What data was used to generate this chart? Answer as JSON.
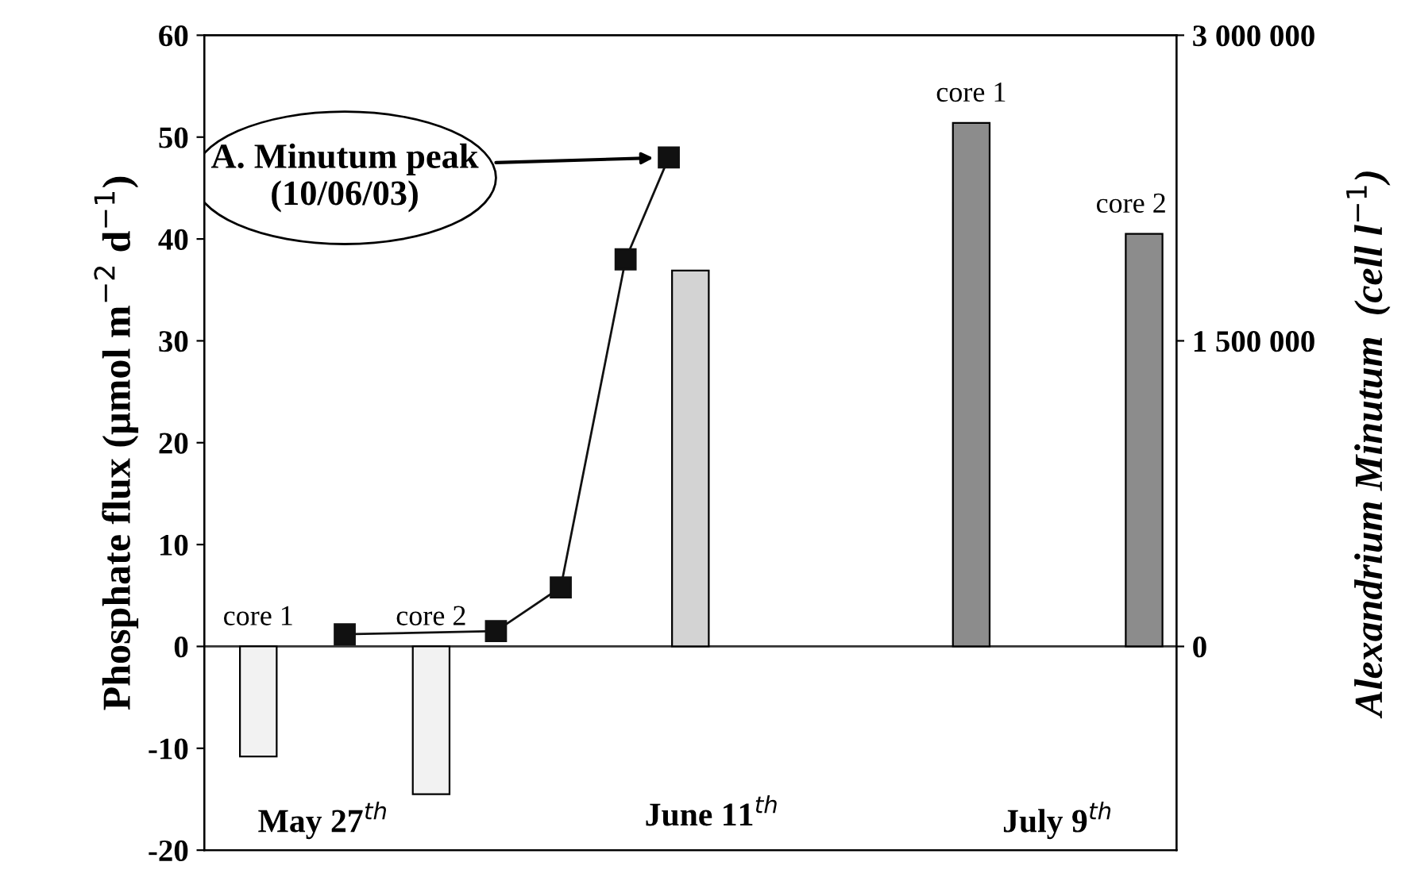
{
  "chart_data": {
    "type": "bar",
    "ylabel": "Phosphate flux (µmol m$^{−2}$ d$^{−1}$)",
    "y2label": "Alexandrium Minutum  (cell l$^{−1}$)",
    "categories": [
      null,
      null,
      null,
      null,
      null,
      "May 27$^{th}$",
      null,
      null,
      null,
      null,
      null,
      null,
      null,
      null,
      null,
      null,
      null,
      null,
      null,
      null,
      null,
      null,
      null,
      "June 11$^{th}$",
      null,
      null,
      null,
      null,
      null,
      null,
      null,
      null,
      null,
      null,
      null,
      null,
      null,
      null,
      null,
      "July 9$^{th}$",
      null,
      null,
      null,
      null,
      null
    ],
    "ylim": [
      -20,
      60
    ],
    "yticks": [
      -20,
      -10,
      0,
      10,
      20,
      30,
      40,
      50,
      60
    ],
    "y2lim": [
      -1000000,
      3000000
    ],
    "y2ticks": [
      {
        "value": 0,
        "label": "0"
      },
      {
        "value": 1500000,
        "label": "1 500 000"
      },
      {
        "value": 3000000,
        "label": "3 000 000"
      }
    ],
    "grid": false,
    "legend": false,
    "ref_lines": [
      {
        "axis": "y",
        "value": 0,
        "color": "#333333",
        "line_style": "solid"
      }
    ],
    "series": [
      {
        "values": [
          null,
          null,
          -10.8,
          null,
          null,
          null,
          null,
          null,
          null,
          null,
          -14.5,
          null,
          null,
          null,
          null,
          null,
          null,
          null,
          null,
          null,
          null,
          null,
          36.9,
          null,
          null,
          null,
          null,
          null,
          null,
          null,
          null,
          null,
          null,
          null,
          null,
          51.4,
          null,
          null,
          null,
          null,
          null,
          null,
          null,
          40.5,
          null
        ],
        "colors": [
          null,
          null,
          "#f2f2f2",
          null,
          null,
          null,
          null,
          null,
          null,
          null,
          "#f2f2f2",
          null,
          null,
          null,
          null,
          null,
          null,
          null,
          null,
          null,
          null,
          null,
          "#d3d3d3",
          null,
          null,
          null,
          null,
          null,
          null,
          null,
          null,
          null,
          null,
          null,
          null,
          "#8c8c8c",
          null,
          null,
          null,
          null,
          null,
          null,
          null,
          "#8c8c8c",
          null
        ]
      },
      {
        "type": "line",
        "axis": "y2",
        "color": "#111111",
        "marker": "square",
        "line_style": "solid",
        "values": [
          null,
          null,
          null,
          null,
          null,
          null,
          60000,
          null,
          null,
          null,
          null,
          null,
          null,
          75000,
          null,
          null,
          290000,
          null,
          null,
          1900000,
          null,
          2400000,
          null,
          null,
          null,
          null,
          null,
          null,
          null,
          null,
          null,
          null,
          null,
          null,
          null,
          null,
          null,
          null,
          null,
          null,
          null,
          null,
          null,
          null,
          null
        ]
      }
    ],
    "annotations": [
      "core 1",
      "core 2",
      "core 1",
      "core 2",
      "A. Minutum peak\n(10/06/03)"
    ]
  }
}
